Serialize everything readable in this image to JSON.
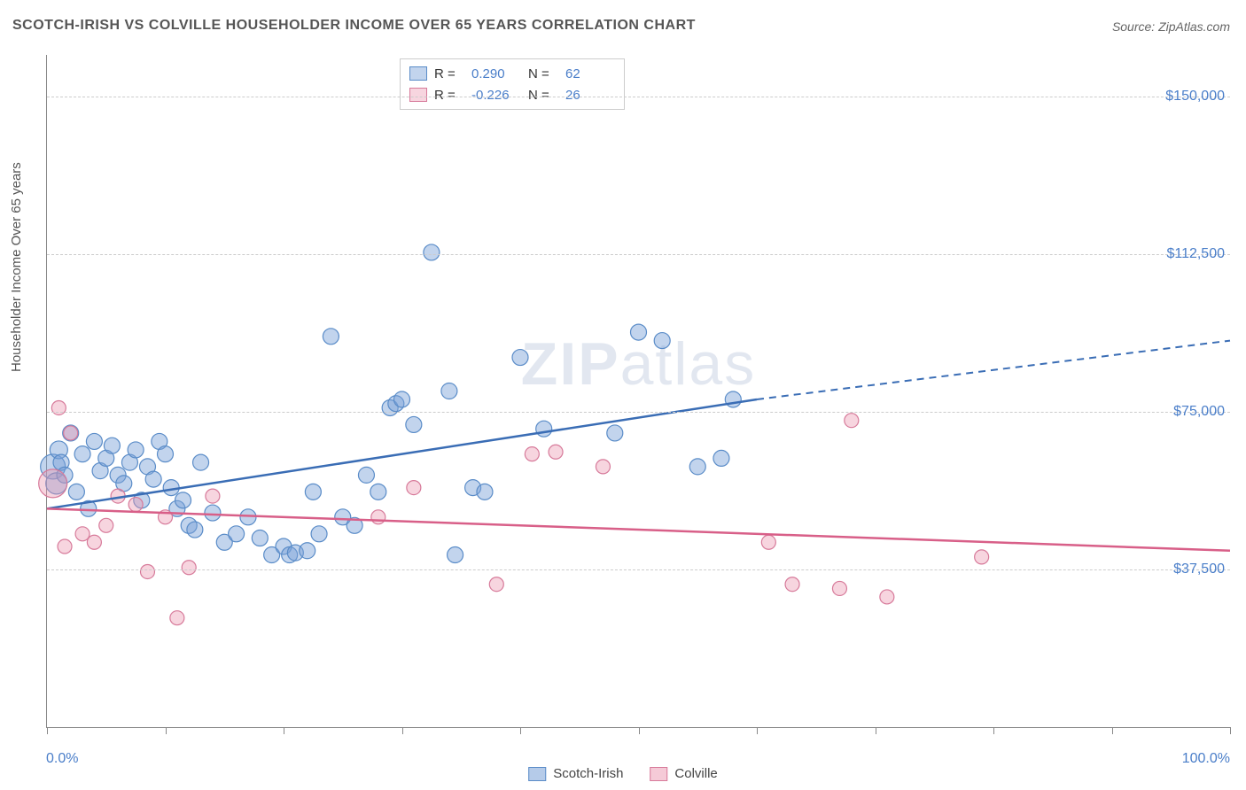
{
  "title": "SCOTCH-IRISH VS COLVILLE HOUSEHOLDER INCOME OVER 65 YEARS CORRELATION CHART",
  "source": "Source: ZipAtlas.com",
  "y_axis_label": "Householder Income Over 65 years",
  "watermark": "ZIPatlas",
  "chart": {
    "type": "scatter-correlation",
    "background_color": "#ffffff",
    "grid_color": "#cccccc",
    "axis_color": "#888888",
    "xlim": [
      0,
      100
    ],
    "ylim": [
      0,
      160000
    ],
    "x_ticks": [
      0,
      10,
      20,
      30,
      40,
      50,
      60,
      70,
      80,
      90,
      100
    ],
    "x_tick_labels_shown": {
      "0": "0.0%",
      "100": "100.0%"
    },
    "y_ticks": [
      37500,
      75000,
      112500,
      150000
    ],
    "y_tick_labels": [
      "$37,500",
      "$75,000",
      "$112,500",
      "$150,000"
    ],
    "tick_label_color": "#4a7ec9",
    "tick_label_fontsize": 16,
    "title_fontsize": 16,
    "title_color": "#555555",
    "series": [
      {
        "name": "Scotch-Irish",
        "R": "0.290",
        "N": "62",
        "marker_fill": "rgba(120,160,215,0.45)",
        "marker_stroke": "#5a8cc8",
        "line_color": "#3a6db5",
        "marker_radius_px": 9,
        "trend": {
          "x1": 0,
          "y1": 52000,
          "x2": 60,
          "y2": 78000,
          "dash_x2": 100,
          "dash_y2": 92000
        },
        "points": [
          [
            0.5,
            62000,
            14
          ],
          [
            0.8,
            58000,
            12
          ],
          [
            1.0,
            66000,
            10
          ],
          [
            1.2,
            63000,
            9
          ],
          [
            1.5,
            60000,
            9
          ],
          [
            2.0,
            70000,
            9
          ],
          [
            2.5,
            56000,
            9
          ],
          [
            3.0,
            65000,
            9
          ],
          [
            3.5,
            52000,
            9
          ],
          [
            4.0,
            68000,
            9
          ],
          [
            4.5,
            61000,
            9
          ],
          [
            5.0,
            64000,
            9
          ],
          [
            5.5,
            67000,
            9
          ],
          [
            6.0,
            60000,
            9
          ],
          [
            6.5,
            58000,
            9
          ],
          [
            7.0,
            63000,
            9
          ],
          [
            7.5,
            66000,
            9
          ],
          [
            8.0,
            54000,
            9
          ],
          [
            8.5,
            62000,
            9
          ],
          [
            9.0,
            59000,
            9
          ],
          [
            9.5,
            68000,
            9
          ],
          [
            10.0,
            65000,
            9
          ],
          [
            10.5,
            57000,
            9
          ],
          [
            11.0,
            52000,
            9
          ],
          [
            11.5,
            54000,
            9
          ],
          [
            12.0,
            48000,
            9
          ],
          [
            12.5,
            47000,
            9
          ],
          [
            13.0,
            63000,
            9
          ],
          [
            14.0,
            51000,
            9
          ],
          [
            15.0,
            44000,
            9
          ],
          [
            16.0,
            46000,
            9
          ],
          [
            17.0,
            50000,
            9
          ],
          [
            18.0,
            45000,
            9
          ],
          [
            19.0,
            41000,
            9
          ],
          [
            20.0,
            43000,
            9
          ],
          [
            20.5,
            41000,
            9
          ],
          [
            21.0,
            41500,
            9
          ],
          [
            22.0,
            42000,
            9
          ],
          [
            22.5,
            56000,
            9
          ],
          [
            23.0,
            46000,
            9
          ],
          [
            24.0,
            93000,
            9
          ],
          [
            25.0,
            50000,
            9
          ],
          [
            26.0,
            48000,
            9
          ],
          [
            27.0,
            60000,
            9
          ],
          [
            28.0,
            56000,
            9
          ],
          [
            29.0,
            76000,
            9
          ],
          [
            29.5,
            77000,
            9
          ],
          [
            30.0,
            78000,
            9
          ],
          [
            31.0,
            72000,
            9
          ],
          [
            32.5,
            113000,
            9
          ],
          [
            34.0,
            80000,
            9
          ],
          [
            34.5,
            41000,
            9
          ],
          [
            36.0,
            57000,
            9
          ],
          [
            37.0,
            56000,
            9
          ],
          [
            40.0,
            88000,
            9
          ],
          [
            42.0,
            71000,
            9
          ],
          [
            48.0,
            70000,
            9
          ],
          [
            50.0,
            94000,
            9
          ],
          [
            52.0,
            92000,
            9
          ],
          [
            55.0,
            62000,
            9
          ],
          [
            57.0,
            64000,
            9
          ],
          [
            58.0,
            78000,
            9
          ]
        ]
      },
      {
        "name": "Colville",
        "R": "-0.226",
        "N": "26",
        "marker_fill": "rgba(235,150,175,0.40)",
        "marker_stroke": "#d77a9a",
        "line_color": "#d85f88",
        "marker_radius_px": 8,
        "trend": {
          "x1": 0,
          "y1": 52000,
          "x2": 100,
          "y2": 42000
        },
        "points": [
          [
            0.5,
            58000,
            16
          ],
          [
            1.0,
            76000,
            8
          ],
          [
            1.5,
            43000,
            8
          ],
          [
            2.0,
            70000,
            8
          ],
          [
            3.0,
            46000,
            8
          ],
          [
            4.0,
            44000,
            8
          ],
          [
            5.0,
            48000,
            8
          ],
          [
            6.0,
            55000,
            8
          ],
          [
            7.5,
            53000,
            8
          ],
          [
            8.5,
            37000,
            8
          ],
          [
            10.0,
            50000,
            8
          ],
          [
            11.0,
            26000,
            8
          ],
          [
            12.0,
            38000,
            8
          ],
          [
            14.0,
            55000,
            8
          ],
          [
            28.0,
            50000,
            8
          ],
          [
            31.0,
            57000,
            8
          ],
          [
            38.0,
            34000,
            8
          ],
          [
            41.0,
            65000,
            8
          ],
          [
            43.0,
            65500,
            8
          ],
          [
            47.0,
            62000,
            8
          ],
          [
            61.0,
            44000,
            8
          ],
          [
            63.0,
            34000,
            8
          ],
          [
            67.0,
            33000,
            8
          ],
          [
            68.0,
            73000,
            8
          ],
          [
            71.0,
            31000,
            8
          ],
          [
            79.0,
            40500,
            8
          ]
        ]
      }
    ]
  },
  "legend_bottom": [
    {
      "label": "Scotch-Irish",
      "fill": "rgba(120,160,215,0.55)",
      "stroke": "#5a8cc8"
    },
    {
      "label": "Colville",
      "fill": "rgba(235,150,175,0.5)",
      "stroke": "#d77a9a"
    }
  ]
}
